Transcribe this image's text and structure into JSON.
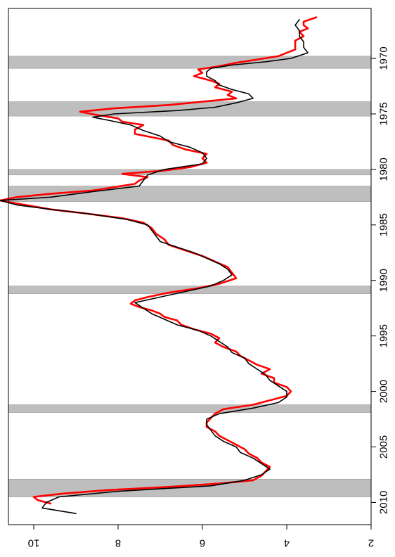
{
  "chart_data": {
    "type": "line",
    "title": "",
    "xlabel": "",
    "ylabel": "",
    "rotated": "90 degrees clockwise",
    "x_axis": {
      "range": [
        1965.5,
        2012
      ],
      "ticks": [
        1970,
        1975,
        1980,
        1985,
        1990,
        1995,
        2000,
        2005,
        2010
      ],
      "tick_labels": [
        "1970",
        "1975",
        "1980",
        "1985",
        "1990",
        "1995",
        "2000",
        "2005",
        "2010"
      ]
    },
    "y_axis": {
      "range": [
        2,
        10.6
      ],
      "ticks": [
        2,
        4,
        6,
        8,
        10
      ],
      "tick_labels": [
        "2",
        "4",
        "6",
        "8",
        "10"
      ]
    },
    "recession_shading": {
      "color": "#bebebe",
      "periods": [
        [
          1969.8,
          1970.9
        ],
        [
          1973.9,
          1975.2
        ],
        [
          1980.0,
          1980.5
        ],
        [
          1981.5,
          1982.9
        ],
        [
          1990.5,
          1991.2
        ],
        [
          2001.2,
          2001.9
        ],
        [
          2007.9,
          2009.5
        ]
      ]
    },
    "series": [
      {
        "color": "#ff0000",
        "x": [
          1966.3,
          1966.7,
          1967.0,
          1967.3,
          1967.6,
          1968.0,
          1968.4,
          1968.8,
          1969.2,
          1969.5,
          1969.8,
          1970.1,
          1970.4,
          1970.7,
          1971.0,
          1971.3,
          1971.6,
          1972.0,
          1972.3,
          1972.6,
          1973.0,
          1973.3,
          1973.6,
          1973.9,
          1974.2,
          1974.5,
          1974.8,
          1975.1,
          1975.4,
          1975.7,
          1976.0,
          1976.4,
          1976.8,
          1977.1,
          1977.4,
          1977.8,
          1978.2,
          1978.6,
          1979.0,
          1979.4,
          1979.8,
          1980.1,
          1980.4,
          1980.7,
          1981.0,
          1981.3,
          1981.6,
          1981.9,
          1982.2,
          1982.5,
          1982.8,
          1983.2,
          1983.6,
          1984.0,
          1984.4,
          1984.8,
          1985.3,
          1985.8,
          1986.3,
          1986.8,
          1987.3,
          1987.8,
          1988.3,
          1988.8,
          1989.3,
          1989.8,
          1990.3,
          1990.7,
          1991.1,
          1991.5,
          1991.8,
          1992.1,
          1992.4,
          1992.7,
          1993.0,
          1993.3,
          1993.6,
          1994.0,
          1994.4,
          1994.8,
          1995.2,
          1995.6,
          1996.0,
          1996.4,
          1996.8,
          1997.2,
          1997.6,
          1998.0,
          1998.4,
          1998.8,
          1999.2,
          1999.6,
          2000.0,
          2000.4,
          2000.8,
          2001.2,
          2001.6,
          2002.0,
          2002.4,
          2002.8,
          2003.2,
          2003.6,
          2004.0,
          2004.4,
          2004.8,
          2005.2,
          2005.6,
          2006.0,
          2006.4,
          2006.8,
          2007.2,
          2007.6,
          2008.0,
          2008.3,
          2008.6,
          2008.9,
          2009.2,
          2009.5,
          2009.8,
          2010.1
        ],
        "y": [
          3.3,
          3.6,
          3.6,
          3.5,
          3.7,
          3.6,
          3.8,
          3.8,
          3.8,
          4.0,
          4.2,
          4.7,
          5.2,
          5.6,
          6.1,
          6.0,
          6.2,
          5.8,
          5.6,
          5.7,
          5.3,
          5.4,
          5.2,
          6.0,
          6.8,
          8.1,
          8.9,
          8.5,
          8.0,
          7.9,
          7.4,
          7.6,
          7.6,
          7.2,
          6.8,
          6.7,
          6.4,
          5.9,
          6.0,
          5.9,
          6.3,
          6.9,
          7.9,
          7.3,
          7.5,
          7.6,
          8.1,
          8.6,
          9.6,
          10.4,
          10.8,
          10.2,
          9.6,
          8.7,
          7.9,
          7.4,
          7.2,
          7.1,
          6.9,
          6.8,
          6.4,
          6.0,
          5.7,
          5.4,
          5.3,
          5.2,
          5.6,
          6.1,
          6.8,
          7.3,
          7.6,
          7.7,
          7.5,
          7.2,
          7.0,
          6.9,
          6.6,
          6.5,
          6.2,
          5.8,
          5.6,
          5.7,
          5.5,
          5.2,
          5.1,
          4.9,
          4.7,
          4.4,
          4.6,
          4.3,
          4.3,
          4.0,
          3.9,
          4.0,
          4.4,
          4.8,
          5.5,
          5.7,
          5.8,
          5.9,
          5.9,
          5.7,
          5.6,
          5.4,
          5.2,
          5.0,
          4.9,
          4.7,
          4.6,
          4.4,
          4.5,
          4.6,
          4.8,
          5.6,
          6.8,
          8.3,
          9.3,
          10.0,
          9.9,
          9.6
        ]
      },
      {
        "color": "#000000",
        "x": [
          1966.5,
          1967.0,
          1967.5,
          1968.0,
          1968.5,
          1969.0,
          1969.5,
          1970.0,
          1970.3,
          1970.6,
          1970.9,
          1971.2,
          1971.6,
          1972.0,
          1972.4,
          1972.8,
          1973.2,
          1973.6,
          1974.0,
          1974.4,
          1974.7,
          1975.0,
          1975.3,
          1975.6,
          1976.0,
          1976.5,
          1977.0,
          1977.5,
          1978.0,
          1978.5,
          1979.0,
          1979.5,
          1980.0,
          1980.5,
          1981.0,
          1981.5,
          1982.0,
          1982.5,
          1982.8,
          1983.2,
          1983.6,
          1984.0,
          1984.5,
          1985.0,
          1985.5,
          1986.0,
          1986.5,
          1987.0,
          1987.5,
          1988.0,
          1988.5,
          1989.0,
          1989.5,
          1990.0,
          1990.5,
          1991.0,
          1991.5,
          1992.0,
          1992.5,
          1993.0,
          1993.5,
          1994.0,
          1994.5,
          1995.0,
          1995.5,
          1996.0,
          1996.5,
          1997.0,
          1997.5,
          1998.0,
          1998.5,
          1999.0,
          1999.5,
          2000.0,
          2000.5,
          2001.0,
          2001.5,
          2002.0,
          2002.5,
          2003.0,
          2003.5,
          2004.0,
          2004.5,
          2005.0,
          2005.5,
          2006.0,
          2006.5,
          2007.0,
          2007.5,
          2008.0,
          2008.5,
          2009.0,
          2009.5,
          2010.0,
          2010.5,
          2011.0
        ],
        "y": [
          3.7,
          3.8,
          3.7,
          3.7,
          3.6,
          3.6,
          3.5,
          3.9,
          4.5,
          5.3,
          5.8,
          5.9,
          5.9,
          5.7,
          5.6,
          5.3,
          4.9,
          4.8,
          5.2,
          5.7,
          6.6,
          8.1,
          8.6,
          8.2,
          7.7,
          7.4,
          7.0,
          6.8,
          6.3,
          6.0,
          5.9,
          6.0,
          6.9,
          7.3,
          7.4,
          7.5,
          8.6,
          9.6,
          10.8,
          10.4,
          9.6,
          8.7,
          7.8,
          7.3,
          7.2,
          7.1,
          7.0,
          6.6,
          6.2,
          5.9,
          5.6,
          5.4,
          5.3,
          5.5,
          5.8,
          6.4,
          7.0,
          7.6,
          7.4,
          7.2,
          6.9,
          6.6,
          6.1,
          5.8,
          5.6,
          5.4,
          5.3,
          5.0,
          4.9,
          4.7,
          4.5,
          4.4,
          4.2,
          4.0,
          4.0,
          4.2,
          4.8,
          5.6,
          5.9,
          5.9,
          5.8,
          5.7,
          5.5,
          5.2,
          5.1,
          4.8,
          4.6,
          4.4,
          4.6,
          5.0,
          5.8,
          8.0,
          9.4,
          9.7,
          9.8,
          9.0
        ]
      }
    ]
  }
}
